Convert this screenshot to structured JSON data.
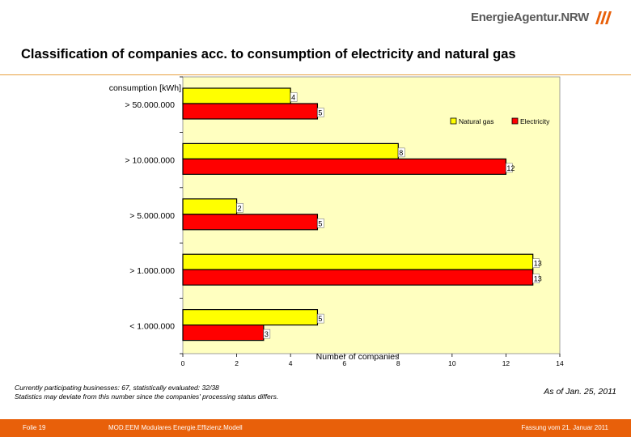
{
  "header": {
    "logo_text": "EnergieAgentur.NRW",
    "title": "Classification of companies acc. to consumption of electricity and natural gas"
  },
  "chart_data": {
    "type": "bar",
    "orientation": "horizontal",
    "categories": [
      "> 50.000.000",
      "> 10.000.000",
      "> 5.000.000",
      "> 1.000.000",
      "< 1.000.000"
    ],
    "series": [
      {
        "name": "Natural gas",
        "values": [
          4,
          8,
          2,
          13,
          5
        ],
        "color": "#ffff00"
      },
      {
        "name": "Electricity",
        "values": [
          5,
          12,
          5,
          13,
          3
        ],
        "color": "#ff0000"
      }
    ],
    "category_axis_label": "consumption [kWh]",
    "xlabel": "Number of companies",
    "xlim": [
      0,
      14
    ],
    "xticks": [
      0,
      2,
      4,
      6,
      8,
      10,
      12,
      14
    ],
    "plot_background": "#ffffc0",
    "legend_position": "top-right",
    "grid": false,
    "data_labels": true
  },
  "notes": {
    "line1": "Currently participating businesses: 67, statistically evaluated: 32/38",
    "line2": "Statistics may deviate from this number since the companies' processing status differs.",
    "as_of": "As of Jan. 25, 2011"
  },
  "footer": {
    "slide": "Folie 19",
    "center": "MOD.EEM Modulares Energie.Effizienz.Modell",
    "right": "Fassung vom 21. Januar 2011"
  },
  "colors": {
    "accent": "#e8600a",
    "logo": "#e8600a"
  }
}
